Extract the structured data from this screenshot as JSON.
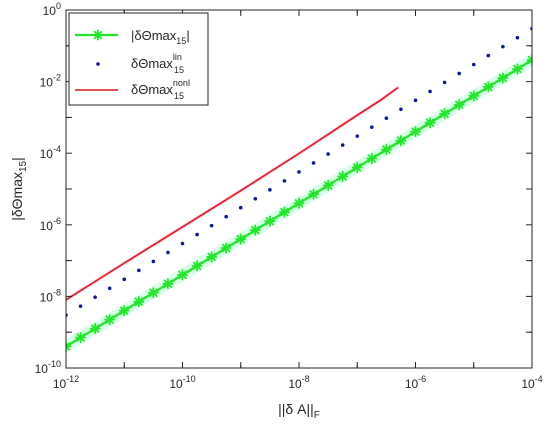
{
  "chart_data": {
    "type": "line",
    "xscale": "log",
    "yscale": "log",
    "xlim": [
      1e-12,
      0.0001
    ],
    "ylim": [
      1e-10,
      1
    ],
    "x_ticks": [
      1e-12,
      1e-10,
      1e-08,
      1e-06,
      0.0001
    ],
    "x_tick_labels": [
      {
        "base": "10",
        "exp": "-12"
      },
      {
        "base": "10",
        "exp": "-10"
      },
      {
        "base": "10",
        "exp": "-8"
      },
      {
        "base": "10",
        "exp": "-6"
      },
      {
        "base": "10",
        "exp": "-4"
      }
    ],
    "y_ticks": [
      1e-10,
      1e-08,
      1e-06,
      0.0001,
      0.01,
      1
    ],
    "y_tick_labels": [
      {
        "base": "10",
        "exp": "-10"
      },
      {
        "base": "10",
        "exp": "-8"
      },
      {
        "base": "10",
        "exp": "-6"
      },
      {
        "base": "10",
        "exp": "-4"
      },
      {
        "base": "10",
        "exp": "-2"
      },
      {
        "base": "10",
        "exp": "0"
      }
    ],
    "xlabel": {
      "main": "||δ A||",
      "sub": "F"
    },
    "ylabel": {
      "main": "|δΘmax",
      "sub": "15",
      "tail": "|"
    },
    "grid": false,
    "legend_position": "top-left",
    "series": [
      {
        "legend_main": "|δΘmax",
        "legend_sub": "15",
        "legend_sup": "",
        "legend_tail": "|",
        "style": "line-star",
        "color": "#22e62a",
        "glow": "#b8ffd6",
        "x_start_exp": -12,
        "x_end_exp": -4,
        "x_step_exp": 0.25,
        "y_at_x_start": 4e-10,
        "slope": 1.0
      },
      {
        "legend_main": "δΘmax",
        "legend_sub": "15",
        "legend_sup": "lin",
        "legend_tail": "",
        "style": "dots",
        "color": "#0b1a8f",
        "x_start_exp": -12,
        "x_end_exp": -4,
        "x_step_exp": 0.25,
        "y_at_x_start": 3e-09,
        "slope": 1.0
      },
      {
        "legend_main": "δΘmax",
        "legend_sub": "15",
        "legend_sup": "nonl",
        "legend_tail": "",
        "style": "line",
        "color": "#d9191c",
        "glow": "#ffb0d0",
        "points": [
          {
            "x": 1e-12,
            "y": 8e-09
          },
          {
            "x": 1e-11,
            "y": 8.5e-08
          },
          {
            "x": 1e-10,
            "y": 8.7e-07
          },
          {
            "x": 1e-09,
            "y": 9e-06
          },
          {
            "x": 1e-08,
            "y": 9.8e-05
          },
          {
            "x": 1e-07,
            "y": 0.00115
          },
          {
            "x": 2.5e-07,
            "y": 0.003
          },
          {
            "x": 5e-07,
            "y": 0.0068
          }
        ]
      }
    ]
  }
}
